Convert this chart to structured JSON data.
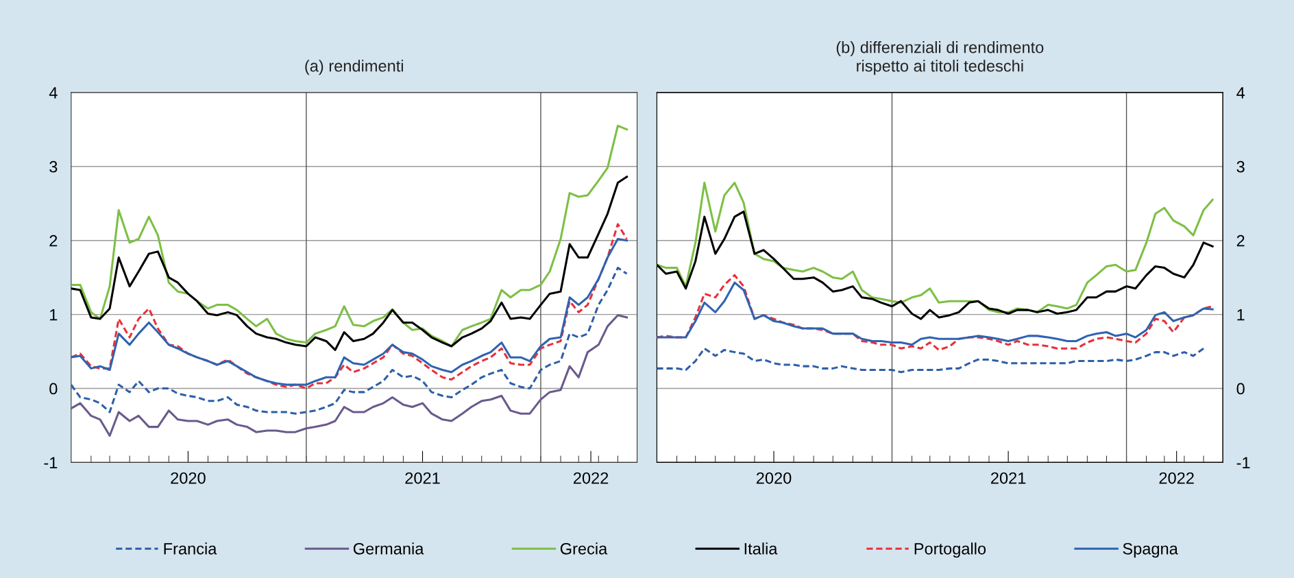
{
  "chart_data": [
    {
      "type": "line",
      "title": "(a) rendimenti",
      "x": [
        "2020-01-01",
        "2020-01-15",
        "2020-02-01",
        "2020-02-15",
        "2020-03-01",
        "2020-03-15",
        "2020-04-01",
        "2020-04-15",
        "2020-05-01",
        "2020-05-15",
        "2020-06-01",
        "2020-06-15",
        "2020-07-01",
        "2020-07-15",
        "2020-08-01",
        "2020-08-15",
        "2020-09-01",
        "2020-09-15",
        "2020-10-01",
        "2020-10-15",
        "2020-11-01",
        "2020-11-15",
        "2020-12-01",
        "2020-12-15",
        "2021-01-01",
        "2021-01-15",
        "2021-02-01",
        "2021-02-15",
        "2021-03-01",
        "2021-03-15",
        "2021-04-01",
        "2021-04-15",
        "2021-05-01",
        "2021-05-15",
        "2021-06-01",
        "2021-06-15",
        "2021-07-01",
        "2021-07-15",
        "2021-08-01",
        "2021-08-15",
        "2021-09-01",
        "2021-09-15",
        "2021-10-01",
        "2021-10-15",
        "2021-11-01",
        "2021-11-15",
        "2021-12-01",
        "2021-12-15",
        "2022-01-01",
        "2022-01-15",
        "2022-02-01",
        "2022-02-15",
        "2022-03-01",
        "2022-03-15",
        "2022-04-01",
        "2022-04-15",
        "2022-05-01",
        "2022-05-15"
      ],
      "xlim": [
        "2020-01-01",
        "2022-05-31"
      ],
      "xticks": [
        {
          "value": "2020-02-01",
          "label": null
        },
        {
          "value": "2020-03-01",
          "label": null
        },
        {
          "value": "2020-04-01",
          "label": null
        },
        {
          "value": "2020-05-01",
          "label": null
        },
        {
          "value": "2020-06-01",
          "label": null
        },
        {
          "value": "2020-07-01",
          "label": "2020"
        },
        {
          "value": "2020-08-01",
          "label": null
        },
        {
          "value": "2020-09-01",
          "label": null
        },
        {
          "value": "2020-10-01",
          "label": null
        },
        {
          "value": "2020-11-01",
          "label": null
        },
        {
          "value": "2020-12-01",
          "label": null
        },
        {
          "value": "2021-01-01",
          "label": null
        },
        {
          "value": "2021-02-01",
          "label": null
        },
        {
          "value": "2021-03-01",
          "label": null
        },
        {
          "value": "2021-04-01",
          "label": null
        },
        {
          "value": "2021-05-01",
          "label": null
        },
        {
          "value": "2021-06-01",
          "label": null
        },
        {
          "value": "2021-07-01",
          "label": "2021"
        },
        {
          "value": "2021-08-01",
          "label": null
        },
        {
          "value": "2021-09-01",
          "label": null
        },
        {
          "value": "2021-10-01",
          "label": null
        },
        {
          "value": "2021-11-01",
          "label": null
        },
        {
          "value": "2021-12-01",
          "label": null
        },
        {
          "value": "2022-01-01",
          "label": null
        },
        {
          "value": "2022-02-01",
          "label": null
        },
        {
          "value": "2022-03-01",
          "label": null
        },
        {
          "value": "2022-03-20",
          "label": "2022"
        },
        {
          "value": "2022-04-01",
          "label": null
        },
        {
          "value": "2022-05-01",
          "label": null
        }
      ],
      "ylim": [
        -1,
        4
      ],
      "yticks": [
        {
          "value": -1,
          "label": "-1"
        },
        0,
        1,
        2,
        3,
        4
      ],
      "grid": "y",
      "legend": "bottom",
      "ref_lines": [
        {
          "axis": "x",
          "value": "2021-01-01",
          "label": null,
          "color": "#555555"
        },
        {
          "axis": "x",
          "value": "2022-01-01",
          "label": null,
          "color": "#555555"
        }
      ],
      "series": [
        {
          "name": "Francia",
          "color": "#2e5fa8",
          "line_style": "dashed",
          "values": [
            0.05,
            -0.12,
            -0.15,
            -0.2,
            -0.32,
            0.05,
            -0.05,
            0.1,
            -0.05,
            0.0,
            0.0,
            -0.07,
            -0.1,
            -0.12,
            -0.17,
            -0.17,
            -0.12,
            -0.22,
            -0.25,
            -0.3,
            -0.32,
            -0.32,
            -0.32,
            -0.34,
            -0.32,
            -0.3,
            -0.25,
            -0.2,
            -0.02,
            -0.05,
            -0.05,
            0.02,
            0.1,
            0.25,
            0.15,
            0.17,
            0.1,
            -0.05,
            -0.1,
            -0.12,
            -0.02,
            0.05,
            0.15,
            0.2,
            0.25,
            0.07,
            0.02,
            0.0,
            0.25,
            0.32,
            0.37,
            0.74,
            0.69,
            0.74,
            1.13,
            1.33,
            1.63,
            1.55
          ]
        },
        {
          "name": "Germania",
          "color": "#6a5a8c",
          "line_style": "solid",
          "values": [
            -0.27,
            -0.2,
            -0.37,
            -0.42,
            -0.64,
            -0.32,
            -0.44,
            -0.37,
            -0.52,
            -0.52,
            -0.3,
            -0.42,
            -0.44,
            -0.44,
            -0.49,
            -0.44,
            -0.42,
            -0.49,
            -0.52,
            -0.59,
            -0.57,
            -0.57,
            -0.59,
            -0.59,
            -0.54,
            -0.52,
            -0.49,
            -0.44,
            -0.25,
            -0.32,
            -0.32,
            -0.25,
            -0.2,
            -0.12,
            -0.22,
            -0.25,
            -0.2,
            -0.34,
            -0.42,
            -0.44,
            -0.34,
            -0.25,
            -0.17,
            -0.15,
            -0.1,
            -0.3,
            -0.34,
            -0.34,
            -0.15,
            -0.05,
            -0.02,
            0.3,
            0.15,
            0.49,
            0.59,
            0.84,
            0.99,
            0.96
          ]
        },
        {
          "name": "Grecia",
          "color": "#7dbf45",
          "line_style": "solid",
          "values": [
            1.4,
            1.4,
            1.03,
            0.94,
            1.38,
            2.41,
            1.97,
            2.02,
            2.32,
            2.07,
            1.43,
            1.31,
            1.28,
            1.18,
            1.08,
            1.13,
            1.13,
            1.06,
            0.94,
            0.84,
            0.94,
            0.74,
            0.67,
            0.64,
            0.62,
            0.74,
            0.79,
            0.84,
            1.11,
            0.86,
            0.84,
            0.91,
            0.96,
            1.07,
            0.89,
            0.79,
            0.81,
            0.71,
            0.64,
            0.57,
            0.79,
            0.84,
            0.89,
            0.94,
            1.33,
            1.23,
            1.33,
            1.33,
            1.4,
            1.58,
            2.02,
            2.64,
            2.59,
            2.61,
            2.81,
            2.98,
            3.55,
            3.5
          ]
        },
        {
          "name": "Italia",
          "color": "#000000",
          "line_style": "solid",
          "values": [
            1.35,
            1.33,
            0.96,
            0.94,
            1.08,
            1.77,
            1.38,
            1.58,
            1.82,
            1.85,
            1.5,
            1.43,
            1.28,
            1.18,
            1.01,
            0.99,
            1.03,
            0.99,
            0.84,
            0.74,
            0.69,
            0.67,
            0.62,
            0.59,
            0.57,
            0.69,
            0.64,
            0.52,
            0.76,
            0.64,
            0.67,
            0.74,
            0.89,
            1.06,
            0.89,
            0.89,
            0.79,
            0.69,
            0.62,
            0.57,
            0.69,
            0.74,
            0.81,
            0.91,
            1.16,
            0.94,
            0.96,
            0.94,
            1.13,
            1.28,
            1.31,
            1.95,
            1.77,
            1.77,
            2.09,
            2.36,
            2.78,
            2.86
          ]
        },
        {
          "name": "Portogallo",
          "color": "#e8303a",
          "line_style": "dashed",
          "values": [
            0.42,
            0.47,
            0.3,
            0.27,
            0.27,
            0.94,
            0.69,
            0.94,
            1.08,
            0.81,
            0.59,
            0.57,
            0.47,
            0.42,
            0.37,
            0.32,
            0.39,
            0.3,
            0.2,
            0.15,
            0.1,
            0.05,
            0.02,
            0.05,
            0.0,
            0.07,
            0.07,
            0.15,
            0.32,
            0.22,
            0.27,
            0.34,
            0.42,
            0.59,
            0.47,
            0.44,
            0.34,
            0.25,
            0.15,
            0.12,
            0.22,
            0.3,
            0.37,
            0.42,
            0.54,
            0.34,
            0.32,
            0.32,
            0.54,
            0.59,
            0.64,
            1.18,
            1.03,
            1.13,
            1.48,
            1.77,
            2.22,
            2.02
          ]
        },
        {
          "name": "Spagna",
          "color": "#2e63b0",
          "line_style": "solid",
          "values": [
            0.42,
            0.44,
            0.27,
            0.3,
            0.25,
            0.74,
            0.59,
            0.74,
            0.89,
            0.76,
            0.59,
            0.54,
            0.47,
            0.42,
            0.37,
            0.32,
            0.37,
            0.3,
            0.22,
            0.15,
            0.1,
            0.07,
            0.05,
            0.05,
            0.05,
            0.1,
            0.15,
            0.15,
            0.42,
            0.34,
            0.32,
            0.39,
            0.47,
            0.59,
            0.49,
            0.47,
            0.39,
            0.3,
            0.25,
            0.22,
            0.32,
            0.37,
            0.44,
            0.49,
            0.62,
            0.42,
            0.42,
            0.37,
            0.57,
            0.67,
            0.69,
            1.23,
            1.13,
            1.23,
            1.48,
            1.77,
            2.02,
            2.0
          ]
        }
      ]
    },
    {
      "type": "line",
      "title": "(b) differenziali di rendimento\nrispetto ai titoli tedeschi",
      "x": [
        "2020-01-01",
        "2020-01-15",
        "2020-02-01",
        "2020-02-15",
        "2020-03-01",
        "2020-03-15",
        "2020-04-01",
        "2020-04-15",
        "2020-05-01",
        "2020-05-15",
        "2020-06-01",
        "2020-06-15",
        "2020-07-01",
        "2020-07-15",
        "2020-08-01",
        "2020-08-15",
        "2020-09-01",
        "2020-09-15",
        "2020-10-01",
        "2020-10-15",
        "2020-11-01",
        "2020-11-15",
        "2020-12-01",
        "2020-12-15",
        "2021-01-01",
        "2021-01-15",
        "2021-02-01",
        "2021-02-15",
        "2021-03-01",
        "2021-03-15",
        "2021-04-01",
        "2021-04-15",
        "2021-05-01",
        "2021-05-15",
        "2021-06-01",
        "2021-06-15",
        "2021-07-01",
        "2021-07-15",
        "2021-08-01",
        "2021-08-15",
        "2021-09-01",
        "2021-09-15",
        "2021-10-01",
        "2021-10-15",
        "2021-11-01",
        "2021-11-15",
        "2021-12-01",
        "2021-12-15",
        "2022-01-01",
        "2022-01-15",
        "2022-02-01",
        "2022-02-15",
        "2022-03-01",
        "2022-03-15",
        "2022-04-01",
        "2022-04-15",
        "2022-05-01",
        "2022-05-15"
      ],
      "xlim": [
        "2020-01-01",
        "2022-05-31"
      ],
      "xticks": [
        {
          "value": "2020-02-01",
          "label": null
        },
        {
          "value": "2020-03-01",
          "label": null
        },
        {
          "value": "2020-04-01",
          "label": null
        },
        {
          "value": "2020-05-01",
          "label": null
        },
        {
          "value": "2020-06-01",
          "label": null
        },
        {
          "value": "2020-07-01",
          "label": "2020"
        },
        {
          "value": "2020-08-01",
          "label": null
        },
        {
          "value": "2020-09-01",
          "label": null
        },
        {
          "value": "2020-10-01",
          "label": null
        },
        {
          "value": "2020-11-01",
          "label": null
        },
        {
          "value": "2020-12-01",
          "label": null
        },
        {
          "value": "2021-01-01",
          "label": null
        },
        {
          "value": "2021-02-01",
          "label": null
        },
        {
          "value": "2021-03-01",
          "label": null
        },
        {
          "value": "2021-04-01",
          "label": null
        },
        {
          "value": "2021-05-01",
          "label": null
        },
        {
          "value": "2021-06-01",
          "label": null
        },
        {
          "value": "2021-07-01",
          "label": "2021"
        },
        {
          "value": "2021-08-01",
          "label": null
        },
        {
          "value": "2021-09-01",
          "label": null
        },
        {
          "value": "2021-10-01",
          "label": null
        },
        {
          "value": "2021-11-01",
          "label": null
        },
        {
          "value": "2021-12-01",
          "label": null
        },
        {
          "value": "2022-01-01",
          "label": null
        },
        {
          "value": "2022-02-01",
          "label": null
        },
        {
          "value": "2022-03-01",
          "label": null
        },
        {
          "value": "2022-03-20",
          "label": "2022"
        },
        {
          "value": "2022-04-01",
          "label": null
        },
        {
          "value": "2022-05-01",
          "label": null
        }
      ],
      "y2lim": [
        -1,
        4
      ],
      "y2ticks": [
        {
          "value": -1,
          "label": "-1"
        },
        0,
        1,
        2,
        3,
        4
      ],
      "grid": "y",
      "legend": "bottom",
      "ref_lines": [
        {
          "axis": "x",
          "value": "2021-01-01",
          "label": null,
          "color": "#555555"
        },
        {
          "axis": "x",
          "value": "2022-01-01",
          "label": null,
          "color": "#555555"
        }
      ],
      "series": [
        {
          "name": "Francia",
          "color": "#2e5fa8",
          "line_style": "dashed",
          "axis": "y2",
          "values": [
            0.27,
            0.27,
            0.27,
            0.25,
            0.37,
            0.54,
            0.44,
            0.52,
            0.49,
            0.47,
            0.37,
            0.39,
            0.34,
            0.32,
            0.32,
            0.3,
            0.3,
            0.27,
            0.27,
            0.3,
            0.27,
            0.25,
            0.25,
            0.25,
            0.25,
            0.22,
            0.25,
            0.25,
            0.25,
            0.25,
            0.27,
            0.27,
            0.34,
            0.39,
            0.39,
            0.37,
            0.34,
            0.34,
            0.34,
            0.34,
            0.34,
            0.34,
            0.34,
            0.37,
            0.37,
            0.37,
            0.37,
            0.39,
            0.37,
            0.39,
            0.44,
            0.49,
            0.49,
            0.44,
            0.49,
            0.44,
            0.54,
            null
          ]
        },
        {
          "name": "Grecia",
          "color": "#7dbf45",
          "line_style": "solid",
          "axis": "y2",
          "values": [
            1.67,
            1.63,
            1.63,
            1.38,
            1.97,
            2.78,
            2.12,
            2.61,
            2.78,
            2.51,
            1.82,
            1.75,
            1.72,
            1.63,
            1.6,
            1.58,
            1.63,
            1.58,
            1.5,
            1.48,
            1.58,
            1.33,
            1.23,
            1.21,
            1.18,
            1.16,
            1.23,
            1.26,
            1.35,
            1.16,
            1.18,
            1.18,
            1.18,
            1.18,
            1.06,
            1.03,
            1.03,
            1.08,
            1.06,
            1.03,
            1.13,
            1.11,
            1.08,
            1.13,
            1.43,
            1.53,
            1.65,
            1.67,
            1.58,
            1.6,
            1.97,
            2.36,
            2.44,
            2.27,
            2.19,
            2.07,
            2.41,
            2.55
          ]
        },
        {
          "name": "Italia",
          "color": "#000000",
          "line_style": "solid",
          "axis": "y2",
          "values": [
            1.67,
            1.55,
            1.58,
            1.35,
            1.72,
            2.32,
            1.82,
            2.02,
            2.32,
            2.39,
            1.82,
            1.87,
            1.75,
            1.63,
            1.48,
            1.48,
            1.5,
            1.43,
            1.31,
            1.33,
            1.38,
            1.23,
            1.21,
            1.16,
            1.11,
            1.18,
            1.01,
            0.94,
            1.06,
            0.96,
            0.99,
            1.03,
            1.16,
            1.18,
            1.08,
            1.06,
            1.01,
            1.06,
            1.06,
            1.03,
            1.06,
            1.01,
            1.03,
            1.06,
            1.23,
            1.23,
            1.31,
            1.31,
            1.38,
            1.35,
            1.53,
            1.65,
            1.63,
            1.55,
            1.5,
            1.67,
            1.97,
            1.92
          ]
        },
        {
          "name": "Portogallo",
          "color": "#e8303a",
          "line_style": "dashed",
          "axis": "y2",
          "values": [
            0.69,
            0.71,
            0.69,
            0.69,
            0.96,
            1.28,
            1.23,
            1.4,
            1.53,
            1.38,
            0.94,
            0.99,
            0.94,
            0.89,
            0.86,
            0.81,
            0.81,
            0.79,
            0.74,
            0.74,
            0.74,
            0.64,
            0.62,
            0.59,
            0.59,
            0.54,
            0.57,
            0.54,
            0.62,
            0.52,
            0.57,
            0.67,
            0.69,
            0.69,
            0.67,
            0.64,
            0.59,
            0.64,
            0.59,
            0.59,
            0.57,
            0.54,
            0.54,
            0.54,
            0.62,
            0.67,
            0.69,
            0.67,
            0.64,
            0.62,
            0.74,
            0.94,
            0.91,
            0.76,
            0.96,
            0.99,
            1.08,
            1.11
          ]
        },
        {
          "name": "Spagna",
          "color": "#2e63b0",
          "line_style": "solid",
          "axis": "y2",
          "values": [
            0.69,
            0.69,
            0.69,
            0.69,
            0.91,
            1.16,
            1.03,
            1.18,
            1.43,
            1.33,
            0.94,
            0.99,
            0.91,
            0.89,
            0.84,
            0.81,
            0.81,
            0.81,
            0.74,
            0.74,
            0.74,
            0.67,
            0.64,
            0.64,
            0.62,
            0.62,
            0.59,
            0.67,
            0.69,
            0.67,
            0.67,
            0.67,
            0.69,
            0.71,
            0.69,
            0.67,
            0.64,
            0.67,
            0.71,
            0.71,
            0.69,
            0.67,
            0.64,
            0.64,
            0.71,
            0.74,
            0.76,
            0.71,
            0.74,
            0.69,
            0.79,
            0.99,
            1.03,
            0.91,
            0.96,
            0.99,
            1.08,
            1.07
          ]
        }
      ]
    }
  ]
}
